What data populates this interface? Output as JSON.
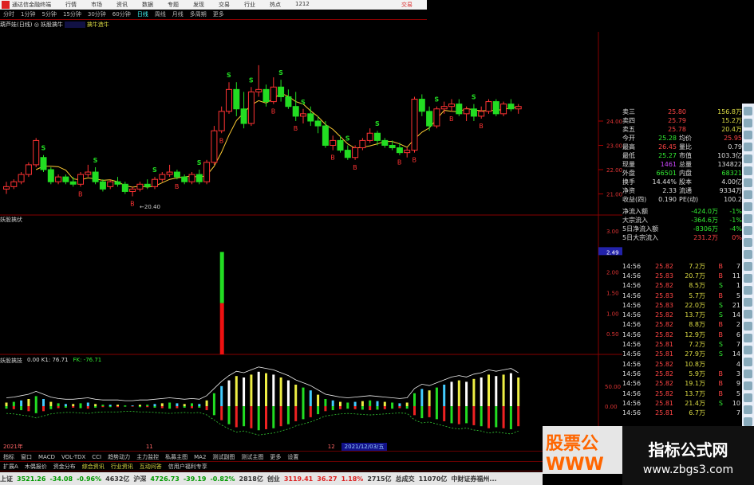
{
  "titlebar": {
    "app": "通达信金融终端",
    "menus": [
      "行情",
      "市场",
      "资讯",
      "数据",
      "专题",
      "发现",
      "交易",
      "行业",
      "热点",
      "1212"
    ],
    "right": "交易"
  },
  "periods": [
    "分时",
    "1分钟",
    "5分钟",
    "15分钟",
    "30分钟",
    "60分钟",
    "日线",
    "周线",
    "月线",
    "多周期",
    "更多"
  ],
  "active_period": "日线",
  "indicator": {
    "name": "葫芦娃(日线)",
    "formula": "妖股擒牛",
    "value": "擒牛造牛"
  },
  "price_axis": [
    "24.00",
    "23.00",
    "22.00",
    "21.00"
  ],
  "low_label": "←20.40",
  "panel2": {
    "title": "妖股擒伏",
    "axis": [
      "3.00",
      "2.49",
      "2.00",
      "1.50",
      "1.00",
      "0.50"
    ]
  },
  "panel3": {
    "title": "妖股擒技",
    "vals": "0.00 K1: 76.71",
    "fk": "FK: -76.71",
    "axis": [
      "50.00",
      "0.00"
    ]
  },
  "colors": {
    "up": "#ff3333",
    "down": "#22dd22",
    "ma": "#ffcc33"
  },
  "chart_data": {
    "type": "candlestick",
    "candles": [
      [
        21.2,
        21.5,
        21.0,
        21.3
      ],
      [
        21.3,
        21.6,
        21.2,
        21.5
      ],
      [
        21.5,
        21.9,
        21.4,
        21.8
      ],
      [
        21.8,
        22.3,
        21.7,
        22.2
      ],
      [
        22.2,
        23.3,
        22.1,
        23.2
      ],
      [
        22.5,
        22.6,
        21.9,
        22.0
      ],
      [
        22.0,
        22.1,
        21.4,
        21.5
      ],
      [
        21.5,
        21.8,
        21.4,
        21.7
      ],
      [
        21.7,
        21.8,
        21.4,
        21.5
      ],
      [
        21.5,
        21.7,
        21.3,
        21.4
      ],
      [
        21.4,
        21.9,
        21.3,
        21.8
      ],
      [
        21.8,
        22.2,
        21.7,
        21.9
      ],
      [
        21.9,
        22.1,
        21.4,
        21.5
      ],
      [
        21.5,
        21.6,
        21.1,
        21.2
      ],
      [
        21.3,
        21.6,
        21.2,
        21.5
      ],
      [
        21.5,
        21.7,
        21.3,
        21.4
      ],
      [
        21.4,
        21.5,
        21.0,
        21.1
      ],
      [
        21.1,
        21.3,
        20.9,
        21.2
      ],
      [
        21.2,
        21.5,
        21.1,
        21.4
      ],
      [
        21.4,
        21.6,
        21.2,
        21.3
      ],
      [
        21.3,
        21.7,
        21.2,
        21.6
      ],
      [
        21.6,
        21.9,
        21.5,
        21.8
      ],
      [
        21.8,
        22.2,
        21.7,
        21.9
      ],
      [
        21.9,
        22.0,
        21.6,
        21.7
      ],
      [
        21.7,
        21.8,
        21.4,
        21.5
      ],
      [
        21.5,
        21.9,
        21.4,
        21.8
      ],
      [
        21.8,
        22.0,
        21.4,
        21.5
      ],
      [
        21.5,
        22.4,
        21.4,
        22.3
      ],
      [
        22.3,
        23.8,
        22.2,
        23.6
      ],
      [
        23.6,
        24.6,
        23.5,
        24.4
      ],
      [
        24.4,
        25.6,
        24.3,
        25.3
      ],
      [
        25.3,
        25.6,
        24.2,
        24.5
      ],
      [
        24.5,
        25.2,
        23.7,
        23.9
      ],
      [
        23.9,
        25.4,
        23.8,
        25.2
      ],
      [
        25.2,
        26.3,
        25.0,
        25.3
      ],
      [
        25.3,
        25.5,
        24.6,
        24.8
      ],
      [
        24.8,
        25.8,
        24.7,
        25.4
      ],
      [
        25.4,
        25.7,
        24.8,
        25.0
      ],
      [
        25.0,
        25.3,
        24.5,
        24.6
      ],
      [
        24.6,
        25.2,
        24.0,
        24.2
      ],
      [
        24.2,
        24.5,
        23.9,
        24.3
      ],
      [
        24.3,
        24.6,
        23.8,
        24.0
      ],
      [
        24.0,
        24.2,
        23.5,
        23.8
      ],
      [
        23.8,
        24.0,
        22.9,
        23.0
      ],
      [
        23.0,
        23.4,
        22.8,
        23.2
      ],
      [
        23.2,
        23.4,
        22.7,
        22.8
      ],
      [
        22.8,
        23.0,
        22.4,
        22.5
      ],
      [
        22.5,
        23.0,
        22.4,
        22.9
      ],
      [
        22.9,
        23.3,
        22.8,
        23.2
      ],
      [
        23.2,
        23.7,
        23.1,
        23.5
      ],
      [
        23.5,
        23.6,
        23.0,
        23.2
      ],
      [
        23.2,
        23.3,
        22.9,
        23.0
      ],
      [
        23.0,
        23.2,
        22.8,
        22.9
      ],
      [
        22.9,
        23.1,
        22.6,
        22.7
      ],
      [
        22.7,
        22.9,
        22.5,
        22.8
      ],
      [
        22.8,
        25.0,
        22.7,
        24.9
      ],
      [
        24.9,
        25.1,
        24.2,
        24.4
      ],
      [
        24.4,
        24.6,
        23.6,
        23.8
      ],
      [
        23.8,
        24.6,
        23.7,
        24.5
      ],
      [
        24.5,
        24.8,
        24.3,
        24.6
      ],
      [
        24.6,
        24.9,
        24.4,
        24.7
      ],
      [
        24.7,
        24.9,
        24.2,
        24.3
      ],
      [
        24.3,
        24.6,
        24.0,
        24.5
      ],
      [
        24.5,
        24.7,
        24.0,
        24.2
      ],
      [
        24.2,
        24.6,
        24.1,
        24.4
      ],
      [
        24.4,
        24.9,
        24.3,
        24.8
      ],
      [
        24.8,
        24.9,
        24.2,
        24.3
      ],
      [
        24.3,
        24.8,
        24.2,
        24.7
      ],
      [
        24.7,
        24.9,
        24.4,
        24.5
      ],
      [
        24.5,
        24.7,
        24.3,
        24.6
      ]
    ],
    "signals": {
      "S": [
        5,
        12,
        20,
        26,
        30,
        33,
        37,
        40,
        46,
        50,
        58,
        63
      ],
      "B": [
        10,
        17,
        23,
        29,
        36,
        39,
        44,
        47,
        53,
        55,
        60,
        64
      ]
    },
    "oscillator": [
      5,
      6,
      8,
      10,
      14,
      10,
      6,
      4,
      3,
      3,
      4,
      5,
      3,
      2,
      2,
      2,
      1,
      1,
      2,
      2,
      3,
      4,
      5,
      4,
      3,
      4,
      3,
      8,
      18,
      28,
      36,
      42,
      40,
      44,
      48,
      46,
      44,
      40,
      36,
      30,
      26,
      22,
      16,
      10,
      8,
      6,
      5,
      6,
      7,
      8,
      7,
      6,
      5,
      4,
      5,
      18,
      24,
      22,
      26,
      30,
      34,
      36,
      34,
      38,
      40,
      44,
      42,
      44,
      46,
      40
    ],
    "panel2_bar": {
      "index": 29,
      "value": 2.49
    }
  },
  "quote": {
    "asks": [
      [
        "卖三",
        "25.80",
        "156.8万"
      ],
      [
        "卖四",
        "25.79",
        "15.2万"
      ],
      [
        "卖五",
        "25.78",
        "20.4万"
      ]
    ],
    "stats": [
      [
        "今开",
        "25.28",
        "均价",
        "25.95"
      ],
      [
        "最高",
        "26.45",
        "量比",
        "0.79"
      ],
      [
        "最低",
        "25.27",
        "市值",
        "103.3亿"
      ],
      [
        "现量",
        "1461",
        "总量",
        "134822"
      ],
      [
        "外盘",
        "66501",
        "内盘",
        "68321"
      ],
      [
        "换手",
        "14.44%",
        "股本",
        "4.00亿"
      ],
      [
        "净资",
        "2.33",
        "流通",
        "9334万"
      ],
      [
        "收益(四)",
        "0.190",
        "PE(动)",
        "100.2"
      ]
    ],
    "flows": [
      [
        "净流入额",
        "-424.0万",
        "-1%"
      ],
      [
        "大宗流入",
        "-364.6万",
        "-1%"
      ],
      [
        "5日净流入额",
        "-8306万",
        "-4%"
      ],
      [
        "5日大宗流入",
        "231.2万",
        "0%"
      ]
    ]
  },
  "trades": [
    [
      "14:56",
      "25.82",
      "7.2万",
      "B",
      "7"
    ],
    [
      "14:56",
      "25.83",
      "20.7万",
      "B",
      "11"
    ],
    [
      "14:56",
      "25.82",
      "8.5万",
      "S",
      "1"
    ],
    [
      "14:56",
      "25.83",
      "5.7万",
      "B",
      "5"
    ],
    [
      "14:56",
      "25.83",
      "22.0万",
      "S",
      "21"
    ],
    [
      "14:56",
      "25.82",
      "13.7万",
      "S",
      "14"
    ],
    [
      "14:56",
      "25.82",
      "8.8万",
      "B",
      "2"
    ],
    [
      "14:56",
      "25.82",
      "12.9万",
      "B",
      "6"
    ],
    [
      "14:56",
      "25.81",
      "7.2万",
      "S",
      "7"
    ],
    [
      "14:56",
      "25.81",
      "27.9万",
      "S",
      "14"
    ],
    [
      "14:56",
      "25.82",
      "10.8万",
      "",
      "4"
    ],
    [
      "14:56",
      "25.82",
      "5.9万",
      "B",
      "3"
    ],
    [
      "14:56",
      "25.82",
      "19.1万",
      "B",
      "9"
    ],
    [
      "14:56",
      "25.82",
      "13.7万",
      "B",
      "5"
    ],
    [
      "14:56",
      "25.81",
      "21.4万",
      "S",
      "10"
    ],
    [
      "14:56",
      "25.81",
      "6.7万",
      "",
      "7"
    ]
  ],
  "datebar": {
    "year": "2021年",
    "m11": "11",
    "m12": "12",
    "cursor": "2021/12/03/五"
  },
  "tabs1": [
    "指标",
    "窗口",
    "MACD",
    "VOL-TDX",
    "CCI",
    "趋势动力",
    "主力监控",
    "私募主图",
    "MA2",
    "测试副图",
    "测试主图",
    "更多",
    "设置"
  ],
  "tabs2": [
    "扩展A",
    "木偶报价",
    "资金分布",
    "综合资讯",
    "行业资讯",
    "互动问答",
    "信用户福利专享"
  ],
  "status": [
    [
      "上证",
      "3521.26",
      "-34.08",
      "-0.96%",
      "4632亿"
    ],
    [
      "沪深",
      "4726.73",
      "-39.19",
      "-0.82%",
      "2818亿"
    ],
    [
      "创业",
      "3119.41",
      "36.27",
      "1.18%",
      "2715亿"
    ]
  ],
  "status_total": "总成交",
  "status_total_val": "11070亿",
  "status_news": "中财证券福州...",
  "watermark": {
    "left": "股票公 WWW",
    "right_title": "指标公式网",
    "right_url": "www.zbgs3.com"
  }
}
